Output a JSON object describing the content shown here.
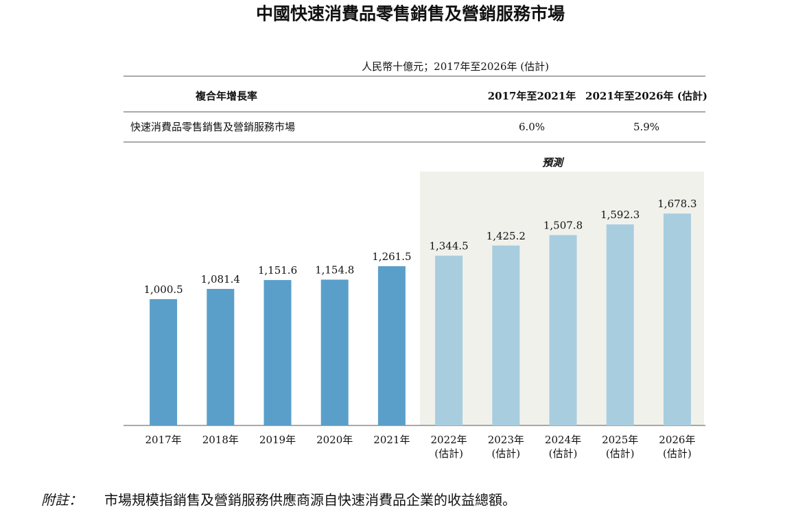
{
  "chart_data": {
    "type": "bar",
    "title": "中國快速消費品零售銷售及營銷服務市場",
    "subtitle": "人民幣十億元；2017年至2026年 (估計)",
    "table": {
      "header": [
        "複合年增長率",
        "2017年至2021年",
        "2021年至2026年 (估計)"
      ],
      "rows": [
        [
          "快速消費品零售銷售及營銷服務市場",
          "6.0%",
          "5.9%"
        ]
      ]
    },
    "forecast_label": "預測",
    "categories": [
      [
        "2017年"
      ],
      [
        "2018年"
      ],
      [
        "2019年"
      ],
      [
        "2020年"
      ],
      [
        "2021年"
      ],
      [
        "2022年",
        "(估計)"
      ],
      [
        "2023年",
        "(估計)"
      ],
      [
        "2024年",
        "(估計)"
      ],
      [
        "2025年",
        "(估計)"
      ],
      [
        "2026年",
        "(估計)"
      ]
    ],
    "values": [
      1000.5,
      1081.4,
      1151.6,
      1154.8,
      1261.5,
      1344.5,
      1425.2,
      1507.8,
      1592.3,
      1678.3
    ],
    "value_labels": [
      "1,000.5",
      "1,081.4",
      "1,151.6",
      "1,154.8",
      "1,261.5",
      "1,344.5",
      "1,425.2",
      "1,507.8",
      "1,592.3",
      "1,678.3"
    ],
    "colors": [
      "#5a9fc9",
      "#5a9fc9",
      "#5a9fc9",
      "#5a9fc9",
      "#5a9fc9",
      "#a8cddf",
      "#a8cddf",
      "#a8cddf",
      "#a8cddf",
      "#a8cddf"
    ],
    "ylim": [
      0,
      2000
    ],
    "footnote": {
      "label": "附註：",
      "text": "市場規模指銷售及營銷服務供應商源自快速消費品企業的收益總額。"
    }
  }
}
